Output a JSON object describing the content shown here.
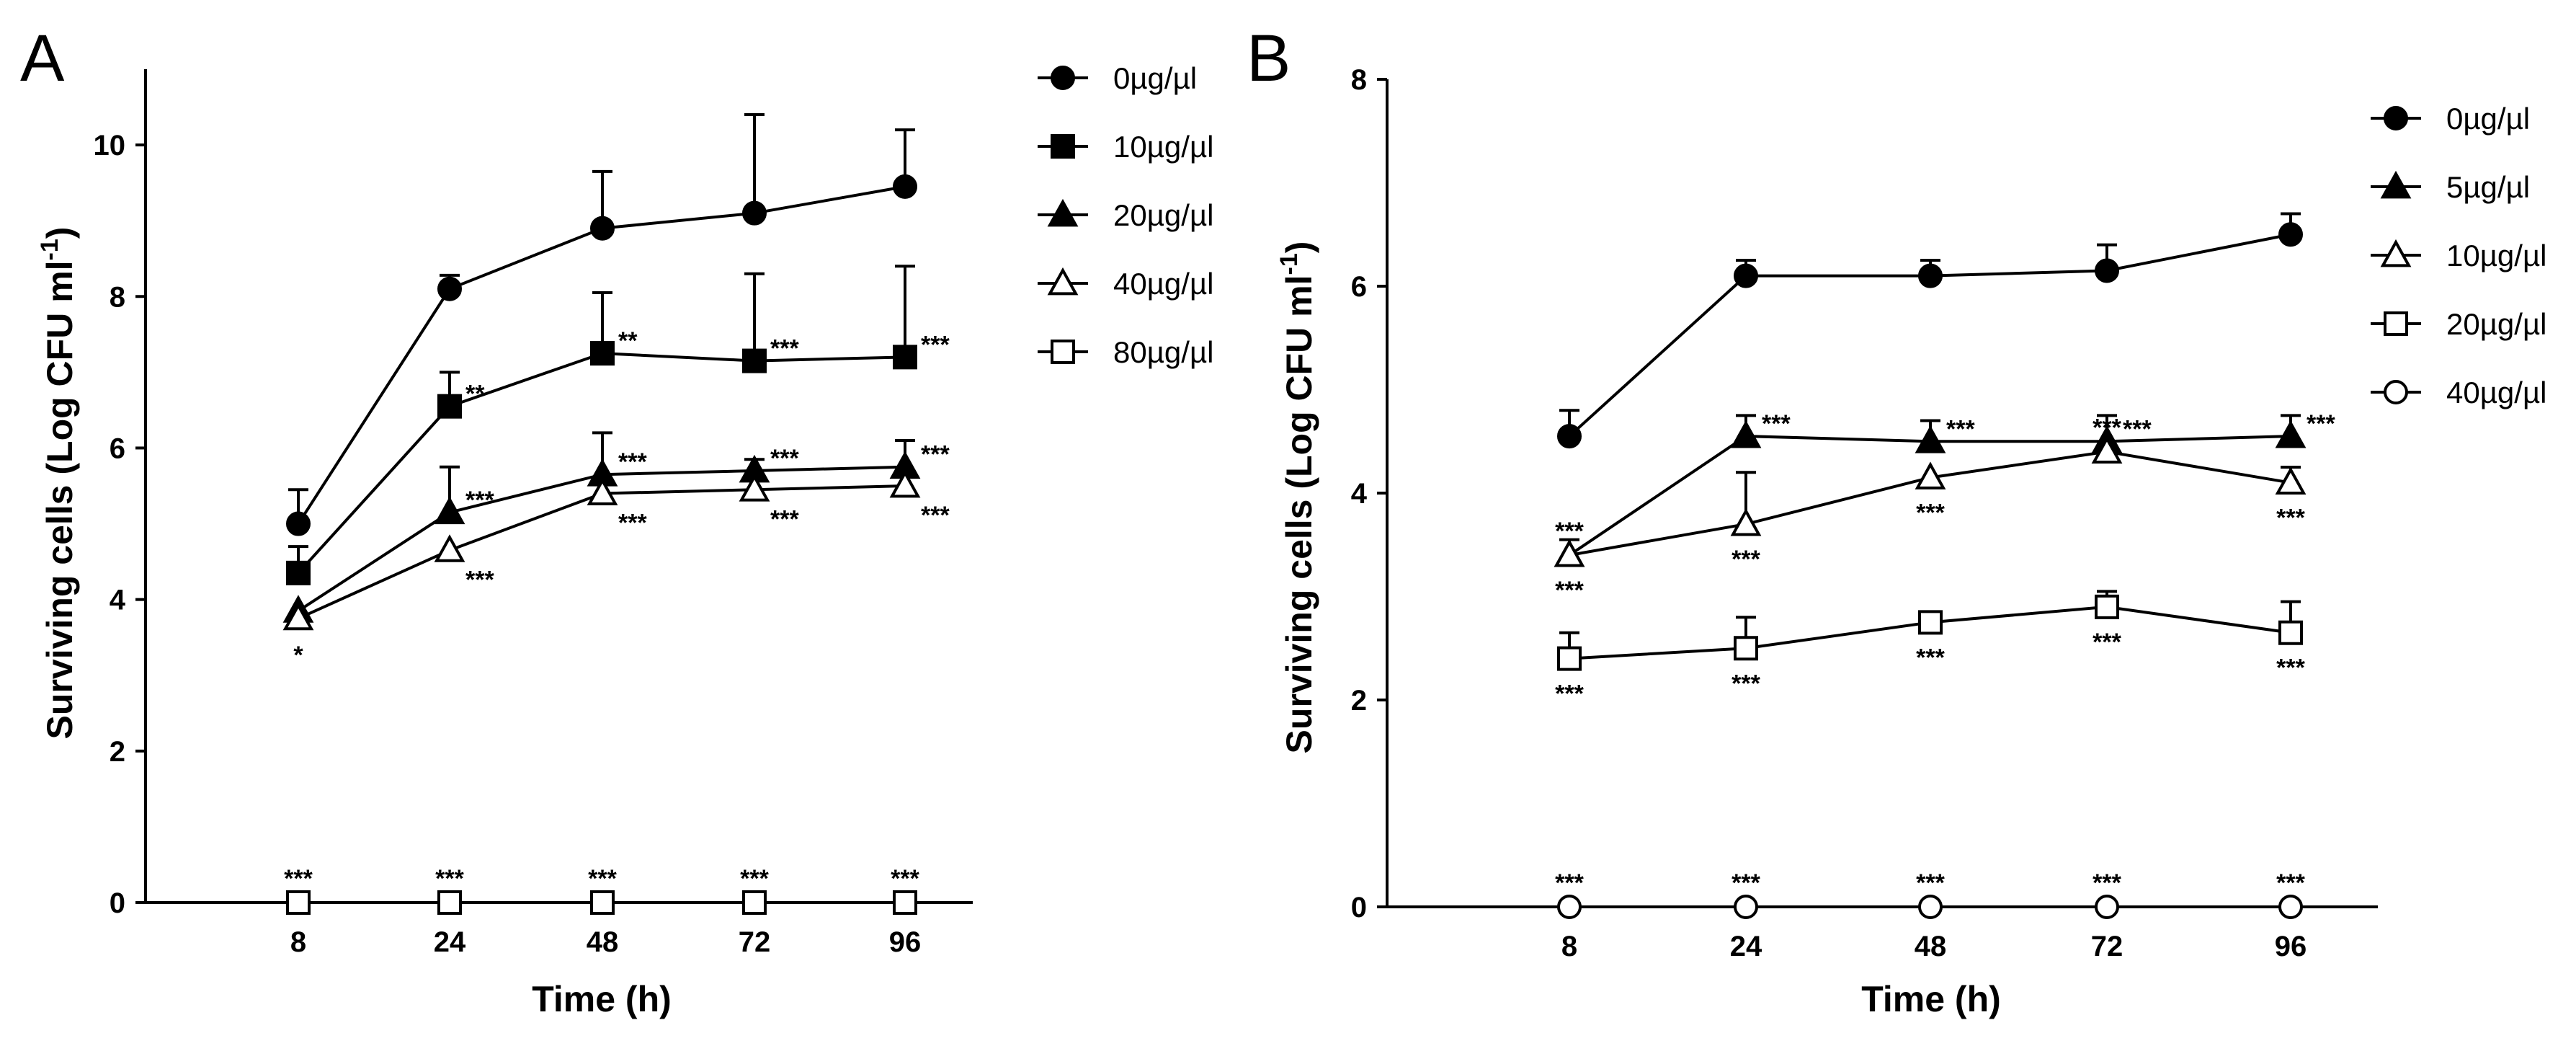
{
  "chart_data": [
    {
      "panel": "A",
      "type": "line",
      "xlabel": "Time (h)",
      "ylabel": "Surviving cells (Log CFU ml",
      "ylabel_sup": "-1",
      "ylabel_close": ")",
      "categories": [
        "8",
        "24",
        "48",
        "72",
        "96"
      ],
      "ylim": [
        0,
        11
      ],
      "yticks": [
        0,
        2,
        4,
        6,
        8,
        10
      ],
      "series": [
        {
          "name": "0µg/µl",
          "marker": "circle",
          "fill": "filled",
          "values": [
            5.0,
            8.1,
            8.9,
            9.1,
            9.45
          ],
          "errors": [
            0.45,
            0.18,
            0.75,
            1.3,
            0.75
          ],
          "sig": [
            "",
            "",
            "",
            "",
            ""
          ]
        },
        {
          "name": "10µg/µl",
          "marker": "square",
          "fill": "filled",
          "values": [
            4.35,
            6.55,
            7.25,
            7.15,
            7.2
          ],
          "errors": [
            0.35,
            0.45,
            0.8,
            1.15,
            1.2
          ],
          "sig": [
            "",
            "**",
            "**",
            "***",
            "***"
          ]
        },
        {
          "name": "20µg/µl",
          "marker": "triangle",
          "fill": "filled",
          "values": [
            3.85,
            5.15,
            5.65,
            5.7,
            5.75
          ],
          "errors": [
            0.0,
            0.6,
            0.55,
            0.15,
            0.35
          ],
          "sig": [
            "",
            "***",
            "***",
            "***",
            "***"
          ]
        },
        {
          "name": "40µg/µl",
          "marker": "triangle",
          "fill": "open",
          "values": [
            3.75,
            4.65,
            5.4,
            5.45,
            5.5
          ],
          "errors": [
            0.0,
            0.0,
            0.0,
            0.0,
            0.0
          ],
          "sig": [
            "*",
            "***",
            "***",
            "***",
            "***"
          ]
        },
        {
          "name": "80µg/µl",
          "marker": "square",
          "fill": "open",
          "values": [
            0,
            0,
            0,
            0,
            0
          ],
          "errors": [
            0,
            0,
            0,
            0,
            0
          ],
          "sig": [
            "***",
            "***",
            "***",
            "***",
            "***"
          ]
        }
      ]
    },
    {
      "panel": "B",
      "type": "line",
      "xlabel": "Time (h)",
      "ylabel": "Surviving cells (Log CFU ml",
      "ylabel_sup": "-1",
      "ylabel_close": ")",
      "categories": [
        "8",
        "24",
        "48",
        "72",
        "96"
      ],
      "ylim": [
        0,
        8
      ],
      "yticks": [
        0,
        2,
        4,
        6,
        8
      ],
      "series": [
        {
          "name": "0µg/µl",
          "marker": "circle",
          "fill": "filled",
          "values": [
            4.55,
            6.1,
            6.1,
            6.15,
            6.5
          ],
          "errors": [
            0.25,
            0.15,
            0.15,
            0.25,
            0.2
          ],
          "sig": [
            "",
            "",
            "",
            "",
            ""
          ]
        },
        {
          "name": "5µg/µl",
          "marker": "triangle",
          "fill": "filled",
          "values": [
            3.4,
            4.55,
            4.5,
            4.5,
            4.55
          ],
          "errors": [
            0.0,
            0.2,
            0.2,
            0.25,
            0.2
          ],
          "sig": [
            "***",
            "***",
            "***",
            "***",
            "***"
          ]
        },
        {
          "name": "10µg/µl",
          "marker": "triangle",
          "fill": "open",
          "values": [
            3.4,
            3.7,
            4.15,
            4.4,
            4.1
          ],
          "errors": [
            0.15,
            0.5,
            0.0,
            0.0,
            0.15
          ],
          "sig": [
            "***",
            "***",
            "***",
            "***",
            "***"
          ]
        },
        {
          "name": "20µg/µl",
          "marker": "square",
          "fill": "open",
          "values": [
            2.4,
            2.5,
            2.75,
            2.9,
            2.65
          ],
          "errors": [
            0.25,
            0.3,
            0.1,
            0.15,
            0.3
          ],
          "sig": [
            "***",
            "***",
            "***",
            "***",
            "***"
          ]
        },
        {
          "name": "40µg/µl",
          "marker": "circle",
          "fill": "open",
          "values": [
            0,
            0,
            0,
            0,
            0
          ],
          "errors": [
            0,
            0,
            0,
            0,
            0
          ],
          "sig": [
            "***",
            "***",
            "***",
            "***",
            "***"
          ]
        }
      ]
    }
  ]
}
